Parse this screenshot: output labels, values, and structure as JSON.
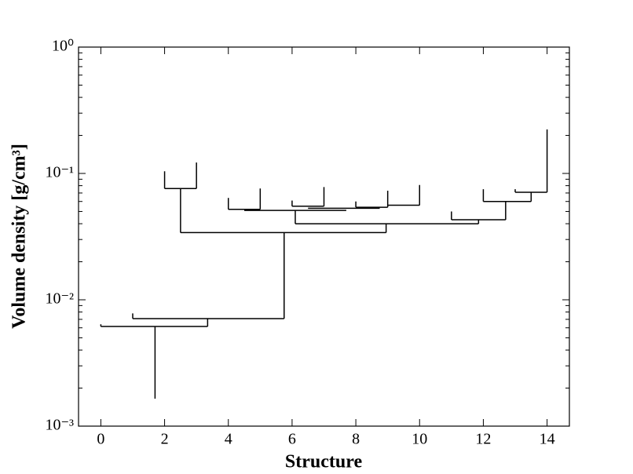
{
  "chart_data": {
    "type": "dendrogram",
    "x_label": "Structure",
    "y_label": "Volume density [g/cm³]",
    "log_y": true,
    "color": "#000000",
    "xlim": [
      -0.7,
      14.7
    ],
    "xticks": [
      0,
      2,
      4,
      6,
      8,
      10,
      12,
      14
    ],
    "ylim": [
      0.001,
      1
    ],
    "yticks": [
      {
        "value": 0.001,
        "label": "10⁻³"
      },
      {
        "value": 0.01,
        "label": "10⁻²"
      },
      {
        "value": 0.1,
        "label": "10⁻¹"
      },
      {
        "value": 1,
        "label": "10⁰"
      }
    ],
    "segments": [
      {
        "x": [
          1.7,
          1.7
        ],
        "y": [
          0.00165,
          0.00615
        ]
      },
      {
        "x": [
          0,
          3.35
        ],
        "y": [
          0.00615,
          0.00615
        ]
      },
      {
        "x": [
          0,
          0
        ],
        "y": [
          0.00615,
          0.0064
        ]
      },
      {
        "x": [
          3.35,
          3.35
        ],
        "y": [
          0.00615,
          0.0071
        ]
      },
      {
        "x": [
          1,
          5.75
        ],
        "y": [
          0.0071,
          0.0071
        ]
      },
      {
        "x": [
          1,
          1
        ],
        "y": [
          0.0071,
          0.0078
        ]
      },
      {
        "x": [
          5.75,
          5.75
        ],
        "y": [
          0.0071,
          0.034
        ]
      },
      {
        "x": [
          2.5,
          8.95
        ],
        "y": [
          0.034,
          0.034
        ]
      },
      {
        "x": [
          2.5,
          2.5
        ],
        "y": [
          0.034,
          0.076
        ]
      },
      {
        "x": [
          2,
          3
        ],
        "y": [
          0.076,
          0.076
        ]
      },
      {
        "x": [
          2,
          2
        ],
        "y": [
          0.076,
          0.104
        ]
      },
      {
        "x": [
          3,
          3
        ],
        "y": [
          0.076,
          0.122
        ]
      },
      {
        "x": [
          8.95,
          8.95
        ],
        "y": [
          0.034,
          0.04
        ]
      },
      {
        "x": [
          6.1,
          11.85
        ],
        "y": [
          0.04,
          0.04
        ]
      },
      {
        "x": [
          6.1,
          6.1
        ],
        "y": [
          0.04,
          0.051
        ]
      },
      {
        "x": [
          4.5,
          7.7
        ],
        "y": [
          0.051,
          0.051
        ]
      },
      {
        "x": [
          4,
          5
        ],
        "y": [
          0.052,
          0.052
        ]
      },
      {
        "x": [
          4,
          4
        ],
        "y": [
          0.052,
          0.064
        ]
      },
      {
        "x": [
          5,
          5
        ],
        "y": [
          0.052,
          0.076
        ]
      },
      {
        "x": [
          6,
          7
        ],
        "y": [
          0.055,
          0.055
        ]
      },
      {
        "x": [
          6,
          6
        ],
        "y": [
          0.055,
          0.061
        ]
      },
      {
        "x": [
          7,
          7
        ],
        "y": [
          0.055,
          0.078
        ]
      },
      {
        "x": [
          6.5,
          8.75
        ],
        "y": [
          0.053,
          0.053
        ]
      },
      {
        "x": [
          8,
          9
        ],
        "y": [
          0.054,
          0.054
        ]
      },
      {
        "x": [
          8,
          8
        ],
        "y": [
          0.054,
          0.06
        ]
      },
      {
        "x": [
          9,
          10
        ],
        "y": [
          0.056,
          0.056
        ]
      },
      {
        "x": [
          9,
          9
        ],
        "y": [
          0.054,
          0.073
        ]
      },
      {
        "x": [
          10,
          10
        ],
        "y": [
          0.056,
          0.081
        ]
      },
      {
        "x": [
          11.85,
          11.85
        ],
        "y": [
          0.04,
          0.043
        ]
      },
      {
        "x": [
          11,
          12.7
        ],
        "y": [
          0.043,
          0.043
        ]
      },
      {
        "x": [
          11,
          11
        ],
        "y": [
          0.043,
          0.05
        ]
      },
      {
        "x": [
          12.7,
          12.7
        ],
        "y": [
          0.043,
          0.06
        ]
      },
      {
        "x": [
          12,
          13.5
        ],
        "y": [
          0.06,
          0.06
        ]
      },
      {
        "x": [
          12,
          12
        ],
        "y": [
          0.06,
          0.075
        ]
      },
      {
        "x": [
          13.5,
          13.5
        ],
        "y": [
          0.06,
          0.071
        ]
      },
      {
        "x": [
          13,
          14
        ],
        "y": [
          0.071,
          0.071
        ]
      },
      {
        "x": [
          13,
          13
        ],
        "y": [
          0.071,
          0.075
        ]
      },
      {
        "x": [
          14,
          14
        ],
        "y": [
          0.071,
          0.223
        ]
      }
    ]
  }
}
